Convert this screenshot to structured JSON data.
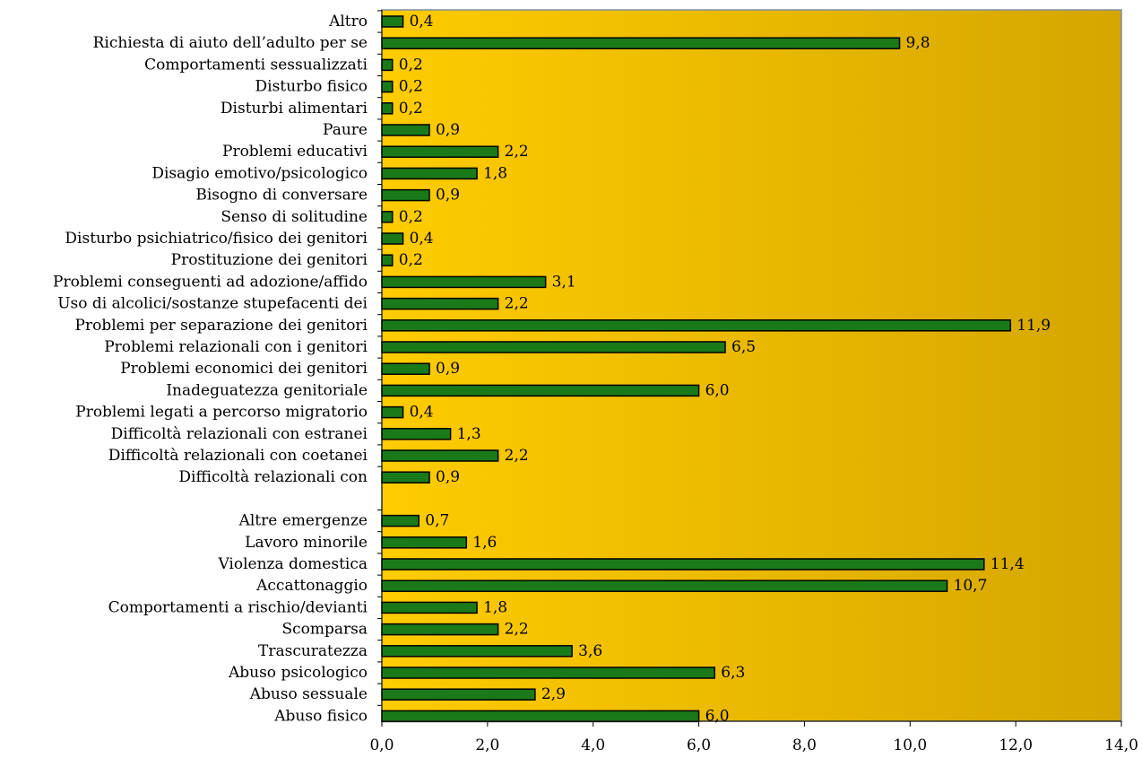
{
  "chart_data": {
    "type": "bar",
    "orientation": "horizontal",
    "categories": [
      "Altro",
      "Richiesta di aiuto dell’adulto per se",
      "Comportamenti sessualizzati",
      "Disturbo fisico",
      "Disturbi alimentari",
      "Paure",
      "Problemi educativi",
      "Disagio emotivo/psicologico",
      "Bisogno di conversare",
      "Senso di solitudine",
      "Disturbo psichiatrico/fisico dei genitori",
      "Prostituzione dei genitori",
      "Problemi conseguenti ad adozione/affido",
      "Uso di alcolici/sostanze stupefacenti dei",
      "Problemi per separazione dei genitori",
      "Problemi relazionali con i genitori",
      "Problemi economici dei genitori",
      "Inadeguatezza genitoriale",
      "Problemi legati a percorso migratorio",
      "Difficoltà relazionali con estranei",
      "Difficoltà relazionali con coetanei",
      "Difficoltà relazionali con",
      "",
      "Altre emergenze",
      "Lavoro minorile",
      "Violenza domestica",
      "Accattonaggio",
      "Comportamenti a rischio/devianti",
      "Scomparsa",
      "Trascuratezza",
      "Abuso psicologico",
      "Abuso sessuale",
      "Abuso fisico"
    ],
    "values": [
      0.4,
      9.8,
      0.2,
      0.2,
      0.2,
      0.9,
      2.2,
      1.8,
      0.9,
      0.2,
      0.4,
      0.2,
      3.1,
      2.2,
      11.9,
      6.5,
      0.9,
      6.0,
      0.4,
      1.3,
      2.2,
      0.9,
      null,
      0.7,
      1.6,
      11.4,
      10.7,
      1.8,
      2.2,
      3.6,
      6.3,
      2.9,
      6.0
    ],
    "value_labels": [
      "0,4",
      "9,8",
      "0,2",
      "0,2",
      "0,2",
      "0,9",
      "2,2",
      "1,8",
      "0,9",
      "0,2",
      "0,4",
      "0,2",
      "3,1",
      "2,2",
      "11,9",
      "6,5",
      "0,9",
      "6,0",
      "0,4",
      "1,3",
      "2,2",
      "0,9",
      "",
      "0,7",
      "1,6",
      "11,4",
      "10,7",
      "1,8",
      "2,2",
      "3,6",
      "6,3",
      "2,9",
      "6,0"
    ],
    "xlim": [
      0,
      14
    ],
    "x_ticks": [
      0,
      2,
      4,
      6,
      8,
      10,
      12,
      14
    ],
    "x_tick_labels": [
      "0,0",
      "2,0",
      "4,0",
      "6,0",
      "8,0",
      "10,0",
      "12,0",
      "14,0"
    ],
    "title": "",
    "xlabel": "",
    "ylabel": "",
    "grid": false,
    "legend": "none",
    "colors": {
      "bar_fill": "#1a7a1a",
      "bar_stroke": "#000000",
      "plot_bg_start": "#ffcc00",
      "plot_bg_end": "#d4a600",
      "plot_border": "#7f8fa6"
    }
  }
}
